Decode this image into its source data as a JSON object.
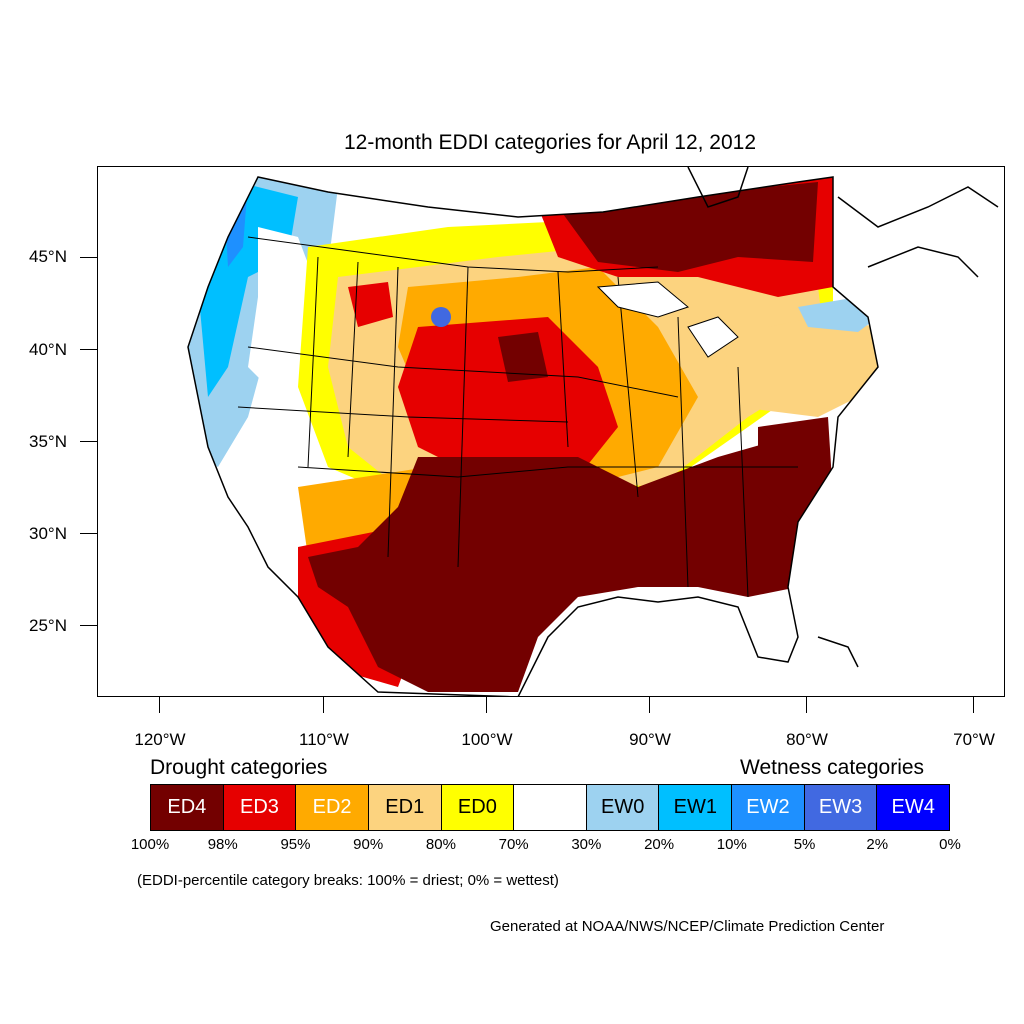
{
  "title": "12-month EDDI categories for April 12, 2012",
  "lat_labels": [
    "45°N",
    "40°N",
    "35°N",
    "30°N",
    "25°N"
  ],
  "lon_labels": [
    "120°W",
    "110°W",
    "100°W",
    "90°W",
    "80°W",
    "70°W"
  ],
  "legend": {
    "drought_heading": "Drought categories",
    "wetness_heading": "Wetness categories",
    "categories": [
      {
        "label": "ED4",
        "color": "#730000",
        "text_color": "#ffffff"
      },
      {
        "label": "ED3",
        "color": "#e60000",
        "text_color": "#ffffff"
      },
      {
        "label": "ED2",
        "color": "#ffaa00",
        "text_color": "#ffffff"
      },
      {
        "label": "ED1",
        "color": "#fcd37f",
        "text_color": "#000000"
      },
      {
        "label": "ED0",
        "color": "#ffff00",
        "text_color": "#000000"
      },
      {
        "label": "",
        "color": "#ffffff",
        "text_color": "#000000"
      },
      {
        "label": "EW0",
        "color": "#9dd2f0",
        "text_color": "#000000"
      },
      {
        "label": "EW1",
        "color": "#00bfff",
        "text_color": "#000000"
      },
      {
        "label": "EW2",
        "color": "#1e90ff",
        "text_color": "#ffffff"
      },
      {
        "label": "EW3",
        "color": "#4169e1",
        "text_color": "#ffffff"
      },
      {
        "label": "EW4",
        "color": "#0000ff",
        "text_color": "#ffffff"
      }
    ],
    "breaks": [
      "100%",
      "98%",
      "95%",
      "90%",
      "80%",
      "70%",
      "30%",
      "20%",
      "10%",
      "5%",
      "2%",
      "0%"
    ]
  },
  "note": "(EDDI-percentile category breaks: 100% = driest; 0% = wettest)",
  "credit": "Generated at NOAA/NWS/NCEP/Climate Prediction Center"
}
